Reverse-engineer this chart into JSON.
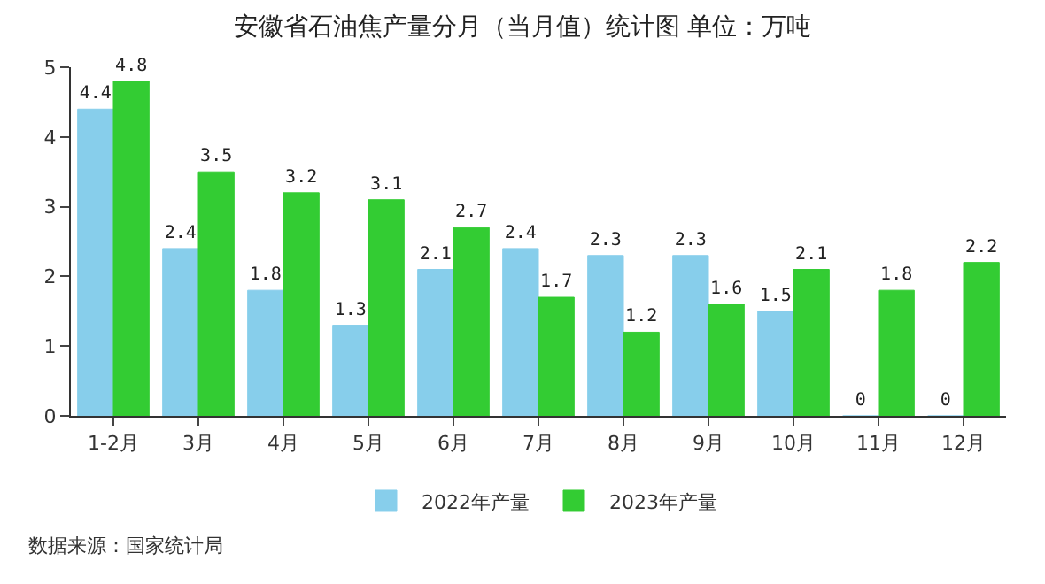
{
  "chart_data": {
    "type": "bar",
    "title": "安徽省石油焦产量分月（当月值）统计图 单位：万吨",
    "categories": [
      "1-2月",
      "3月",
      "4月",
      "5月",
      "6月",
      "7月",
      "8月",
      "9月",
      "10月",
      "11月",
      "12月"
    ],
    "series": [
      {
        "name": "2022年产量",
        "color": "#87ceeb",
        "values": [
          4.4,
          2.4,
          1.8,
          1.3,
          2.1,
          2.4,
          2.3,
          2.3,
          1.5,
          0,
          0
        ]
      },
      {
        "name": "2023年产量",
        "color": "#33cc33",
        "values": [
          4.8,
          3.5,
          3.2,
          3.1,
          2.7,
          1.7,
          1.2,
          1.6,
          2.1,
          1.8,
          2.2
        ]
      }
    ],
    "ylim": [
      0,
      5
    ],
    "yticks": [
      0,
      1,
      2,
      3,
      4,
      5
    ],
    "legend": "bottom",
    "data_labels": true,
    "annotations": [
      "数据来源：国家统计局"
    ]
  }
}
